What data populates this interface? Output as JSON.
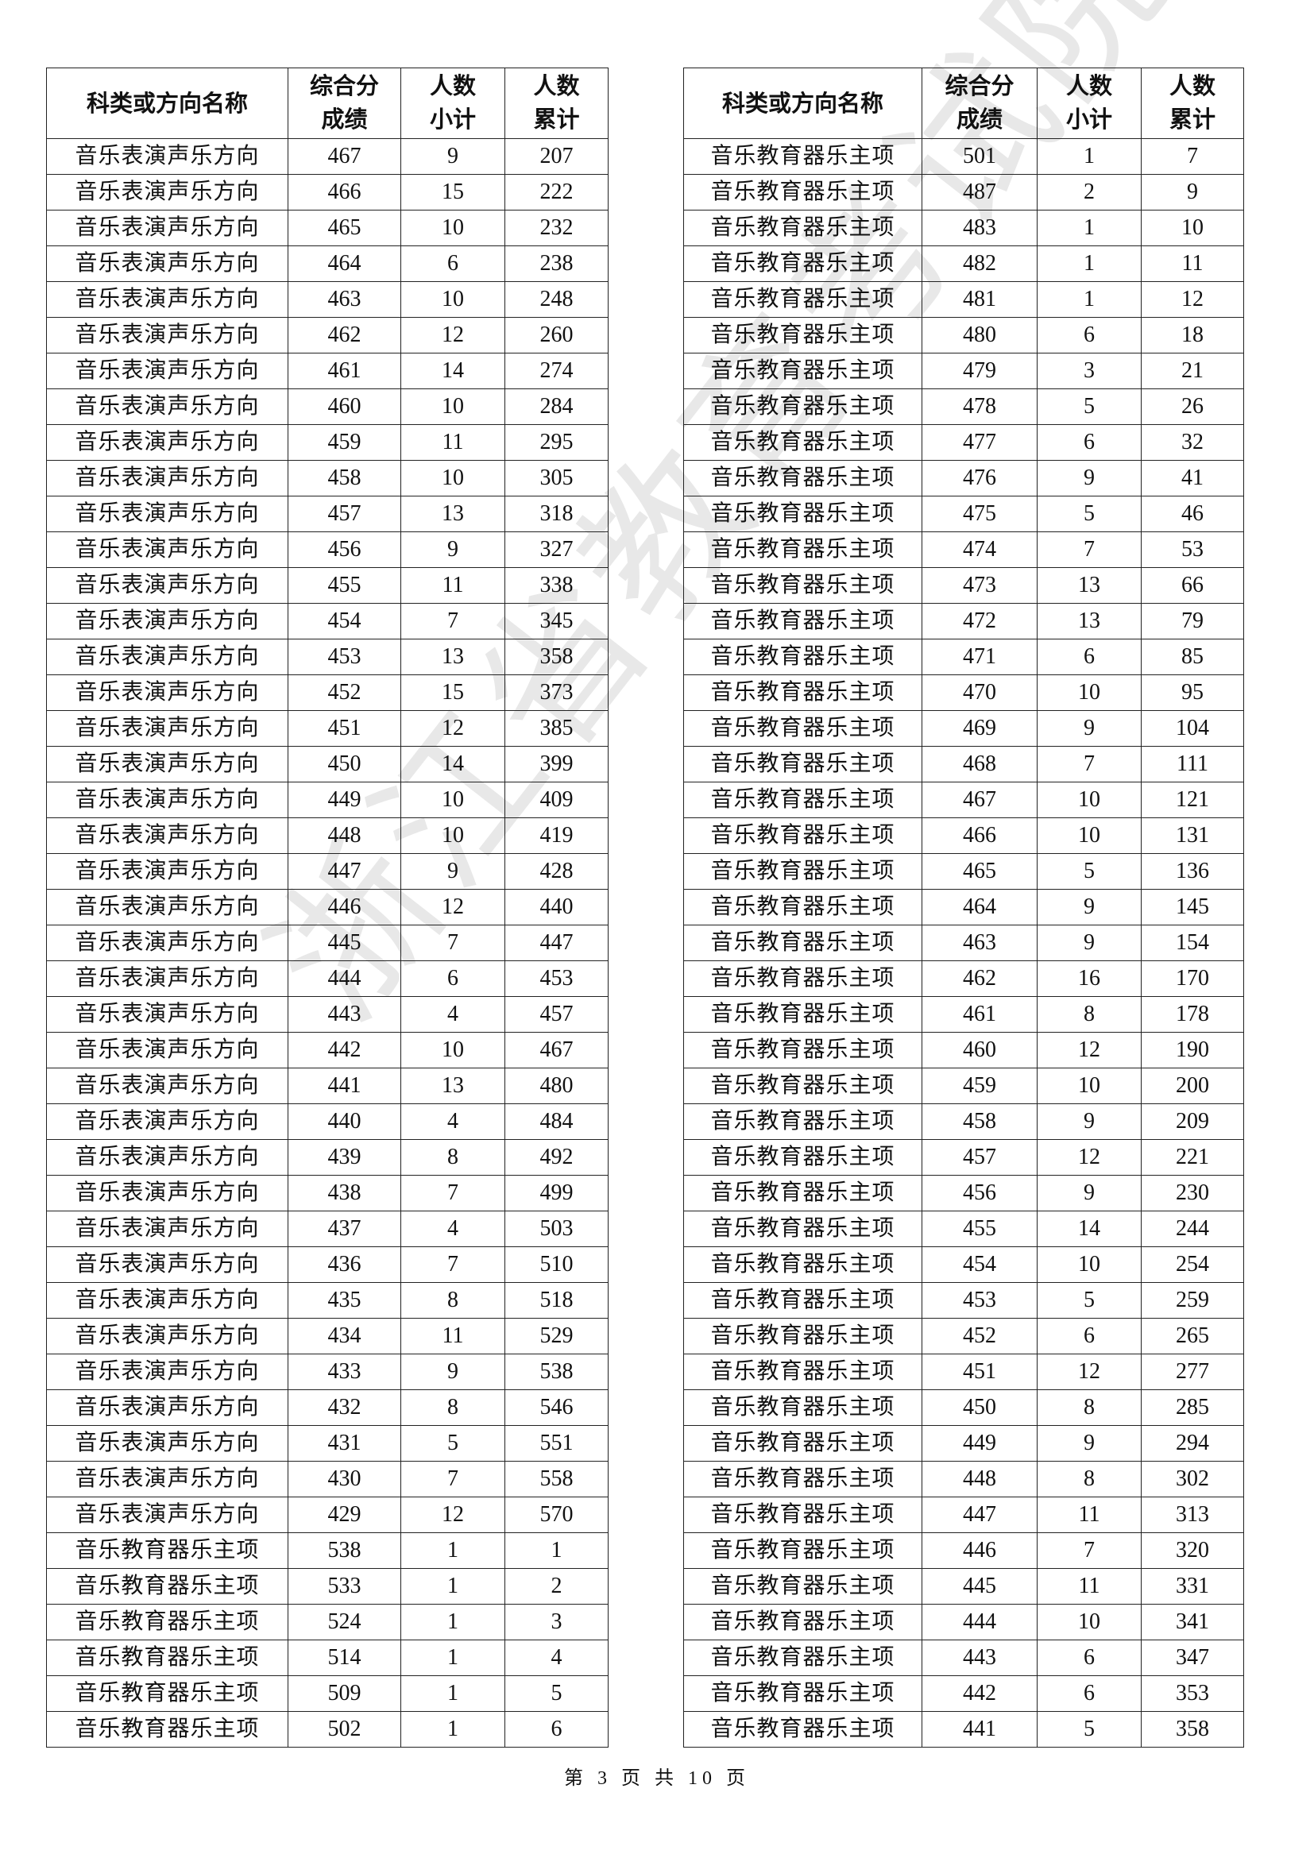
{
  "watermark": "浙江省教育考试院",
  "headers": [
    "科类或方向名称",
    "综合分成绩",
    "人数小计",
    "人数累计"
  ],
  "header_lines": [
    [
      "科类或方向名称"
    ],
    [
      "综合分",
      "成绩"
    ],
    [
      "人数",
      "小计"
    ],
    [
      "人数",
      "累计"
    ]
  ],
  "left": {
    "rows": [
      [
        "音乐表演声乐方向",
        "467",
        "9",
        "207"
      ],
      [
        "音乐表演声乐方向",
        "466",
        "15",
        "222"
      ],
      [
        "音乐表演声乐方向",
        "465",
        "10",
        "232"
      ],
      [
        "音乐表演声乐方向",
        "464",
        "6",
        "238"
      ],
      [
        "音乐表演声乐方向",
        "463",
        "10",
        "248"
      ],
      [
        "音乐表演声乐方向",
        "462",
        "12",
        "260"
      ],
      [
        "音乐表演声乐方向",
        "461",
        "14",
        "274"
      ],
      [
        "音乐表演声乐方向",
        "460",
        "10",
        "284"
      ],
      [
        "音乐表演声乐方向",
        "459",
        "11",
        "295"
      ],
      [
        "音乐表演声乐方向",
        "458",
        "10",
        "305"
      ],
      [
        "音乐表演声乐方向",
        "457",
        "13",
        "318"
      ],
      [
        "音乐表演声乐方向",
        "456",
        "9",
        "327"
      ],
      [
        "音乐表演声乐方向",
        "455",
        "11",
        "338"
      ],
      [
        "音乐表演声乐方向",
        "454",
        "7",
        "345"
      ],
      [
        "音乐表演声乐方向",
        "453",
        "13",
        "358"
      ],
      [
        "音乐表演声乐方向",
        "452",
        "15",
        "373"
      ],
      [
        "音乐表演声乐方向",
        "451",
        "12",
        "385"
      ],
      [
        "音乐表演声乐方向",
        "450",
        "14",
        "399"
      ],
      [
        "音乐表演声乐方向",
        "449",
        "10",
        "409"
      ],
      [
        "音乐表演声乐方向",
        "448",
        "10",
        "419"
      ],
      [
        "音乐表演声乐方向",
        "447",
        "9",
        "428"
      ],
      [
        "音乐表演声乐方向",
        "446",
        "12",
        "440"
      ],
      [
        "音乐表演声乐方向",
        "445",
        "7",
        "447"
      ],
      [
        "音乐表演声乐方向",
        "444",
        "6",
        "453"
      ],
      [
        "音乐表演声乐方向",
        "443",
        "4",
        "457"
      ],
      [
        "音乐表演声乐方向",
        "442",
        "10",
        "467"
      ],
      [
        "音乐表演声乐方向",
        "441",
        "13",
        "480"
      ],
      [
        "音乐表演声乐方向",
        "440",
        "4",
        "484"
      ],
      [
        "音乐表演声乐方向",
        "439",
        "8",
        "492"
      ],
      [
        "音乐表演声乐方向",
        "438",
        "7",
        "499"
      ],
      [
        "音乐表演声乐方向",
        "437",
        "4",
        "503"
      ],
      [
        "音乐表演声乐方向",
        "436",
        "7",
        "510"
      ],
      [
        "音乐表演声乐方向",
        "435",
        "8",
        "518"
      ],
      [
        "音乐表演声乐方向",
        "434",
        "11",
        "529"
      ],
      [
        "音乐表演声乐方向",
        "433",
        "9",
        "538"
      ],
      [
        "音乐表演声乐方向",
        "432",
        "8",
        "546"
      ],
      [
        "音乐表演声乐方向",
        "431",
        "5",
        "551"
      ],
      [
        "音乐表演声乐方向",
        "430",
        "7",
        "558"
      ],
      [
        "音乐表演声乐方向",
        "429",
        "12",
        "570"
      ],
      [
        "音乐教育器乐主项",
        "538",
        "1",
        "1"
      ],
      [
        "音乐教育器乐主项",
        "533",
        "1",
        "2"
      ],
      [
        "音乐教育器乐主项",
        "524",
        "1",
        "3"
      ],
      [
        "音乐教育器乐主项",
        "514",
        "1",
        "4"
      ],
      [
        "音乐教育器乐主项",
        "509",
        "1",
        "5"
      ],
      [
        "音乐教育器乐主项",
        "502",
        "1",
        "6"
      ]
    ]
  },
  "right": {
    "rows": [
      [
        "音乐教育器乐主项",
        "501",
        "1",
        "7"
      ],
      [
        "音乐教育器乐主项",
        "487",
        "2",
        "9"
      ],
      [
        "音乐教育器乐主项",
        "483",
        "1",
        "10"
      ],
      [
        "音乐教育器乐主项",
        "482",
        "1",
        "11"
      ],
      [
        "音乐教育器乐主项",
        "481",
        "1",
        "12"
      ],
      [
        "音乐教育器乐主项",
        "480",
        "6",
        "18"
      ],
      [
        "音乐教育器乐主项",
        "479",
        "3",
        "21"
      ],
      [
        "音乐教育器乐主项",
        "478",
        "5",
        "26"
      ],
      [
        "音乐教育器乐主项",
        "477",
        "6",
        "32"
      ],
      [
        "音乐教育器乐主项",
        "476",
        "9",
        "41"
      ],
      [
        "音乐教育器乐主项",
        "475",
        "5",
        "46"
      ],
      [
        "音乐教育器乐主项",
        "474",
        "7",
        "53"
      ],
      [
        "音乐教育器乐主项",
        "473",
        "13",
        "66"
      ],
      [
        "音乐教育器乐主项",
        "472",
        "13",
        "79"
      ],
      [
        "音乐教育器乐主项",
        "471",
        "6",
        "85"
      ],
      [
        "音乐教育器乐主项",
        "470",
        "10",
        "95"
      ],
      [
        "音乐教育器乐主项",
        "469",
        "9",
        "104"
      ],
      [
        "音乐教育器乐主项",
        "468",
        "7",
        "111"
      ],
      [
        "音乐教育器乐主项",
        "467",
        "10",
        "121"
      ],
      [
        "音乐教育器乐主项",
        "466",
        "10",
        "131"
      ],
      [
        "音乐教育器乐主项",
        "465",
        "5",
        "136"
      ],
      [
        "音乐教育器乐主项",
        "464",
        "9",
        "145"
      ],
      [
        "音乐教育器乐主项",
        "463",
        "9",
        "154"
      ],
      [
        "音乐教育器乐主项",
        "462",
        "16",
        "170"
      ],
      [
        "音乐教育器乐主项",
        "461",
        "8",
        "178"
      ],
      [
        "音乐教育器乐主项",
        "460",
        "12",
        "190"
      ],
      [
        "音乐教育器乐主项",
        "459",
        "10",
        "200"
      ],
      [
        "音乐教育器乐主项",
        "458",
        "9",
        "209"
      ],
      [
        "音乐教育器乐主项",
        "457",
        "12",
        "221"
      ],
      [
        "音乐教育器乐主项",
        "456",
        "9",
        "230"
      ],
      [
        "音乐教育器乐主项",
        "455",
        "14",
        "244"
      ],
      [
        "音乐教育器乐主项",
        "454",
        "10",
        "254"
      ],
      [
        "音乐教育器乐主项",
        "453",
        "5",
        "259"
      ],
      [
        "音乐教育器乐主项",
        "452",
        "6",
        "265"
      ],
      [
        "音乐教育器乐主项",
        "451",
        "12",
        "277"
      ],
      [
        "音乐教育器乐主项",
        "450",
        "8",
        "285"
      ],
      [
        "音乐教育器乐主项",
        "449",
        "9",
        "294"
      ],
      [
        "音乐教育器乐主项",
        "448",
        "8",
        "302"
      ],
      [
        "音乐教育器乐主项",
        "447",
        "11",
        "313"
      ],
      [
        "音乐教育器乐主项",
        "446",
        "7",
        "320"
      ],
      [
        "音乐教育器乐主项",
        "445",
        "11",
        "331"
      ],
      [
        "音乐教育器乐主项",
        "444",
        "10",
        "341"
      ],
      [
        "音乐教育器乐主项",
        "443",
        "6",
        "347"
      ],
      [
        "音乐教育器乐主项",
        "442",
        "6",
        "353"
      ],
      [
        "音乐教育器乐主项",
        "441",
        "5",
        "358"
      ]
    ]
  },
  "footer": "第 3 页 共 10 页"
}
